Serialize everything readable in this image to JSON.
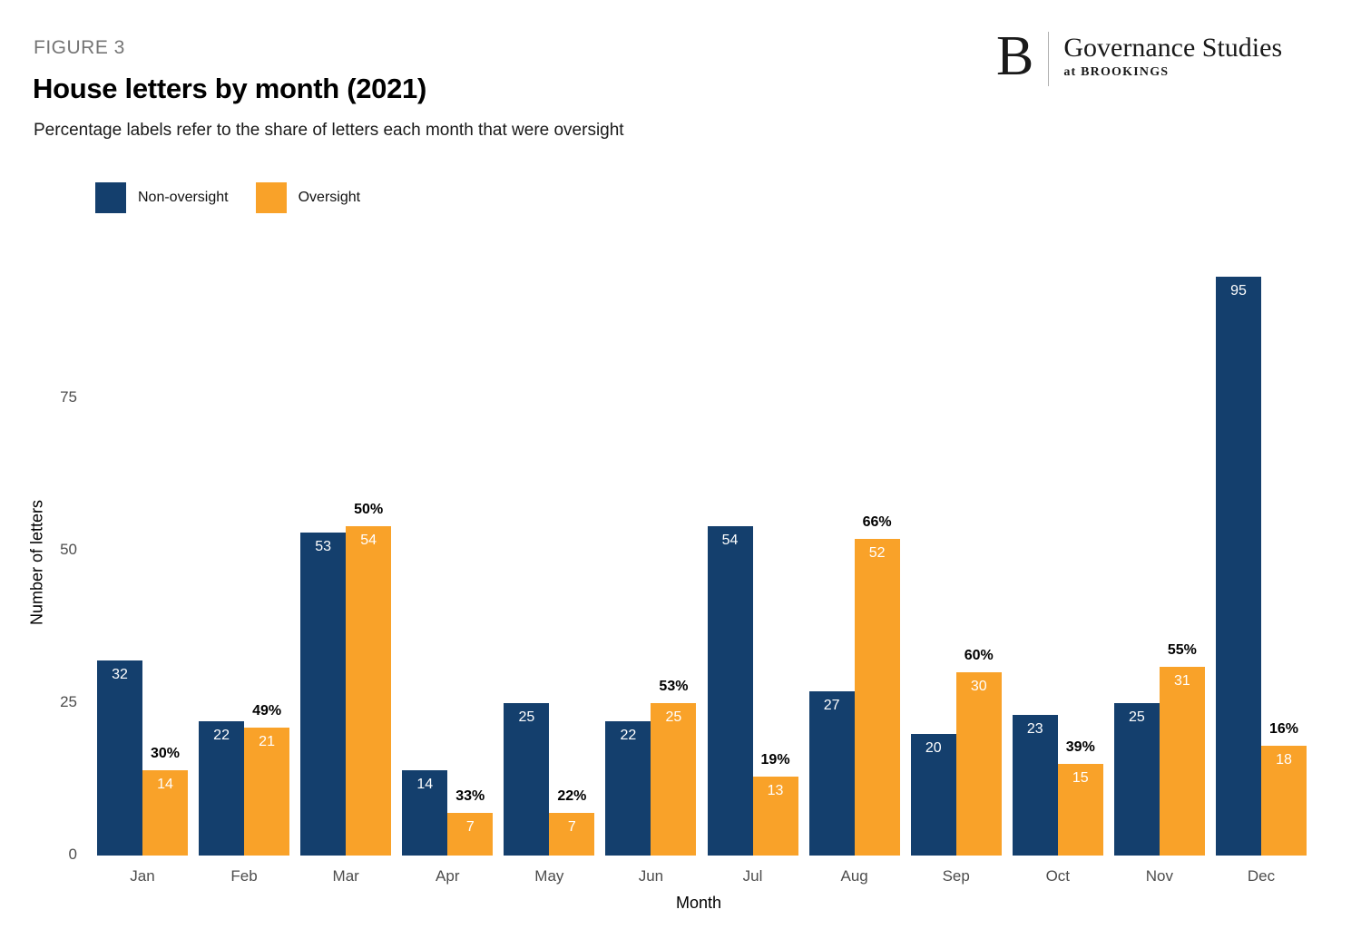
{
  "header": {
    "figure_label": "FIGURE 3",
    "title": "House letters by month (2021)",
    "subtitle": "Percentage labels refer to the share of letters each month that were oversight"
  },
  "logo": {
    "letter": "B",
    "name": "Governance Studies",
    "tagline": "at BROOKINGS"
  },
  "colors": {
    "non_oversight": "#143F6D",
    "oversight": "#F9A229",
    "value_label": "#ffffff",
    "percent_label": "#000000",
    "tick_text": "#4d4d4d"
  },
  "chart_data": {
    "type": "bar",
    "title": "House letters by month (2021)",
    "subtitle": "Percentage labels refer to the share of letters each month that were oversight",
    "categories": [
      "Jan",
      "Feb",
      "Mar",
      "Apr",
      "May",
      "Jun",
      "Jul",
      "Aug",
      "Sep",
      "Oct",
      "Nov",
      "Dec"
    ],
    "series": [
      {
        "name": "Non-oversight",
        "color": "#143F6D",
        "values": [
          32,
          22,
          53,
          14,
          25,
          22,
          54,
          27,
          20,
          23,
          25,
          95
        ]
      },
      {
        "name": "Oversight",
        "color": "#F9A229",
        "values": [
          14,
          21,
          54,
          7,
          7,
          25,
          13,
          52,
          30,
          15,
          31,
          18
        ]
      }
    ],
    "percent_labels": [
      "30%",
      "49%",
      "50%",
      "33%",
      "22%",
      "53%",
      "19%",
      "66%",
      "60%",
      "39%",
      "55%",
      "16%"
    ],
    "xlabel": "Month",
    "ylabel": "Number of letters",
    "yticks": [
      0,
      25,
      50,
      75
    ],
    "ylim": [
      0,
      100
    ],
    "grid": false,
    "legend_position": "top-left"
  }
}
